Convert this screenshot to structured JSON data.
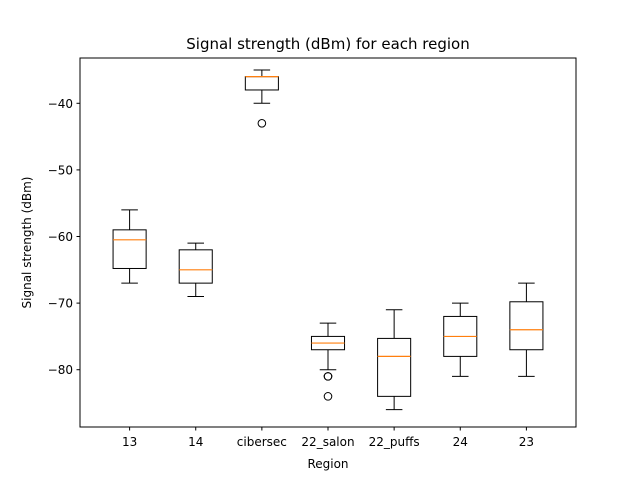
{
  "chart_data": {
    "type": "box",
    "title": "Signal strength (dBm) for each region",
    "xlabel": "Region",
    "ylabel": "Signal strength (dBm)",
    "ylim": [
      -88.6,
      -33.2
    ],
    "yticks": [
      -80,
      -70,
      -60,
      -50,
      -40
    ],
    "grid": false,
    "categories": [
      "13",
      "14",
      "cibersec",
      "22_salon",
      "22_puffs",
      "24",
      "23"
    ],
    "boxes": [
      {
        "whisker_low": -67,
        "q1": -64.8,
        "median": -60.5,
        "q3": -59,
        "whisker_high": -56,
        "outliers": []
      },
      {
        "whisker_low": -69,
        "q1": -67,
        "median": -65,
        "q3": -62,
        "whisker_high": -61,
        "outliers": []
      },
      {
        "whisker_low": -40,
        "q1": -38,
        "median": -36,
        "q3": -36,
        "whisker_high": -35,
        "outliers": [
          -43
        ]
      },
      {
        "whisker_low": -80,
        "q1": -77,
        "median": -76,
        "q3": -75,
        "whisker_high": -73,
        "outliers": [
          -81,
          -81,
          -84
        ]
      },
      {
        "whisker_low": -86,
        "q1": -84,
        "median": -78,
        "q3": -75.3,
        "whisker_high": -71,
        "outliers": []
      },
      {
        "whisker_low": -81,
        "q1": -78,
        "median": -75,
        "q3": -72,
        "whisker_high": -70,
        "outliers": []
      },
      {
        "whisker_low": -81,
        "q1": -77,
        "median": -74,
        "q3": -69.8,
        "whisker_high": -67,
        "outliers": []
      }
    ],
    "colors": {
      "box": "#000000",
      "median": "#ff7f0e",
      "background": "#ffffff"
    }
  }
}
